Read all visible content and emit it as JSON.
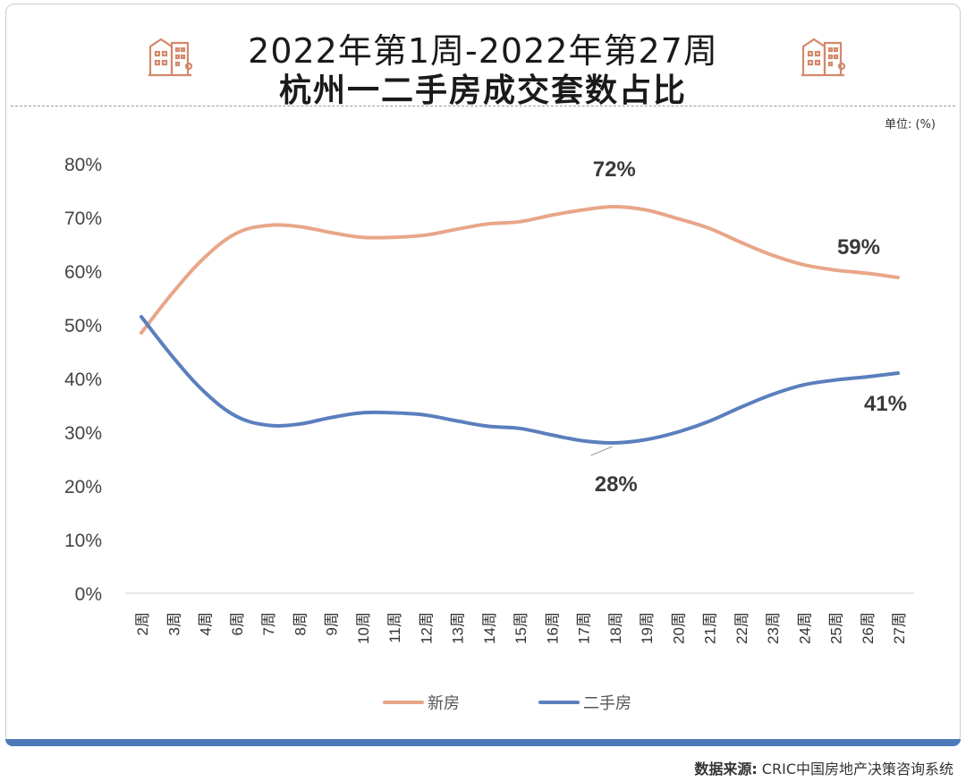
{
  "header": {
    "title_line1": "2022年第1周-2022年第27周",
    "title_line2": "杭州一二手房成交套数占比",
    "unit": "单位: (%)"
  },
  "icons": {
    "left": "building-icon",
    "right": "building-icon"
  },
  "footer": {
    "source_label": "数据来源:",
    "source_text": " CRIC中国房地产决策咨询系统"
  },
  "colors": {
    "new_house": "#e8a688",
    "second_hand": "#5b7fbd",
    "accent_bar": "#4e79b9",
    "icon": "#d3896a"
  },
  "chart_data": {
    "type": "line",
    "categories": [
      "2周",
      "3周",
      "4周",
      "6周",
      "7周",
      "8周",
      "9周",
      "10周",
      "11周",
      "12周",
      "13周",
      "14周",
      "15周",
      "16周",
      "17周",
      "18周",
      "19周",
      "20周",
      "21周",
      "22周",
      "23周",
      "24周",
      "25周",
      "26周",
      "27周"
    ],
    "y_ticks": [
      "0%",
      "10%",
      "20%",
      "30%",
      "40%",
      "50%",
      "60%",
      "70%",
      "80%"
    ],
    "ylim": [
      0,
      80
    ],
    "series": [
      {
        "name": "新房",
        "values": [
          48.5,
          56,
          62.5,
          67,
          68.5,
          68.3,
          67.2,
          66.3,
          66.3,
          66.7,
          67.8,
          68.8,
          69.2,
          70.4,
          71.4,
          72,
          71.4,
          69.8,
          68,
          65.4,
          63,
          61.2,
          60.2,
          59.6,
          58.8
        ]
      },
      {
        "name": "二手房",
        "values": [
          51.5,
          44,
          37.5,
          33,
          31.3,
          31.5,
          32.7,
          33.6,
          33.6,
          33.2,
          32.1,
          31.1,
          30.7,
          29.5,
          28.4,
          28,
          28.6,
          30,
          32,
          34.6,
          37,
          38.8,
          39.7,
          40.3,
          41
        ]
      }
    ],
    "annotations": [
      {
        "text": "72%",
        "series": 0,
        "index": 15
      },
      {
        "text": "59%",
        "series": 0,
        "index": 24
      },
      {
        "text": "28%",
        "series": 1,
        "index": 15
      },
      {
        "text": "41%",
        "series": 1,
        "index": 24
      }
    ],
    "legend_position": "bottom-center",
    "grid": false
  }
}
